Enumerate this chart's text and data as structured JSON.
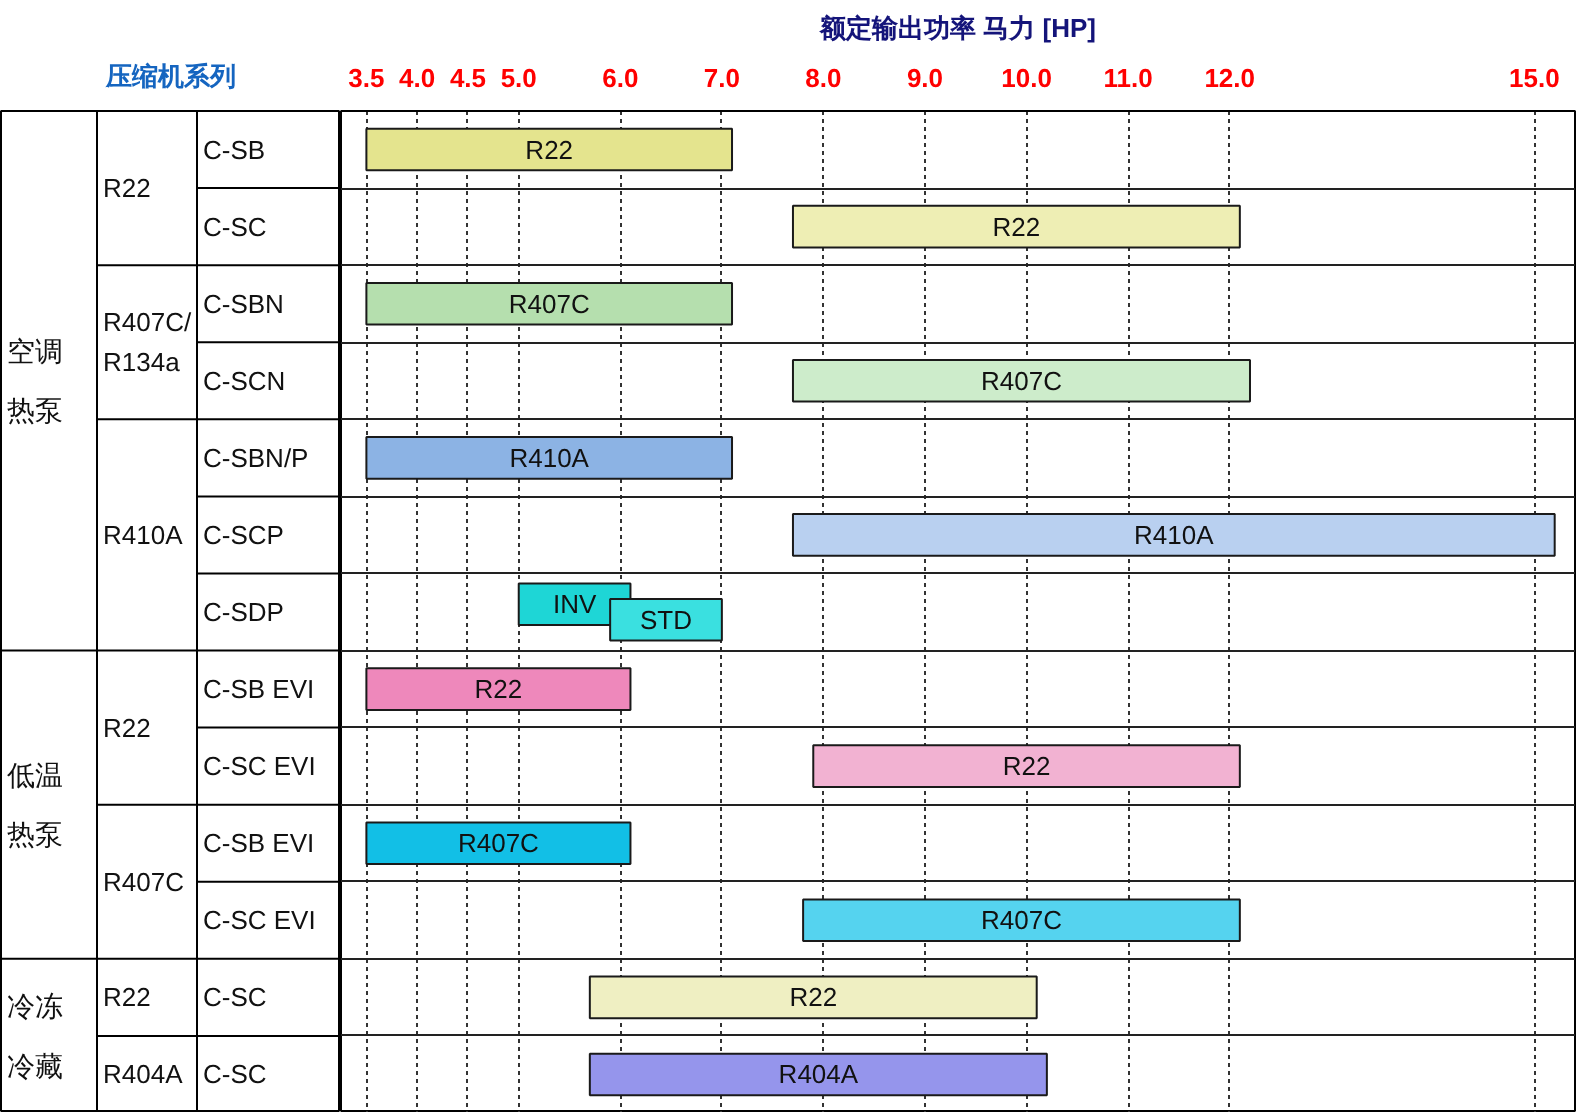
{
  "chart_data": {
    "type": "bar",
    "orientation": "horizontal",
    "xlabel": "额定输出功率 马力 [HP]",
    "ylabel": "压缩机系列",
    "categories": [
      "C-SB",
      "C-SC",
      "C-SBN",
      "C-SCN",
      "C-SBN/P",
      "C-SCP",
      "C-SDP",
      "C-SB EVI",
      "C-SC EVI",
      "C-SB EVI",
      "C-SC EVI",
      "C-SC",
      "C-SC"
    ],
    "annotations": [
      "空调热泵",
      "低温热泵",
      "冷冻冷藏",
      "R22",
      "R407C/\nR134a",
      "R410A",
      "R22",
      "R407C",
      "R22",
      "R404A"
    ],
    "xlim": [
      3.25,
      15.4
    ],
    "xticks": [
      3.5,
      {
        "value": 4,
        "label": "4.0"
      },
      4.5,
      {
        "value": 5,
        "label": "5.0"
      },
      {
        "value": 6,
        "label": "6.0"
      },
      {
        "value": 7,
        "label": "7.0"
      },
      {
        "value": 8,
        "label": "8.0"
      },
      {
        "value": 9,
        "label": "9.0"
      },
      {
        "value": 10,
        "label": "10.0"
      },
      {
        "value": 11,
        "label": "11.0"
      },
      {
        "value": 12,
        "label": "12.0"
      },
      {
        "value": 15,
        "label": "15.0"
      }
    ],
    "grid": true,
    "series": [
      {
        "base": [
          3.5,
          7.7,
          3.5,
          7.7,
          3.5,
          7.7,
          5.0,
          3.5,
          7.9,
          3.5,
          7.8,
          5.7,
          5.7
        ],
        "values": [
          3.6,
          4.4,
          3.6,
          4.5,
          3.6,
          7.5,
          1.1,
          2.6,
          4.2,
          2.6,
          4.3,
          4.4,
          4.5
        ],
        "colors": [
          "#e4e48e",
          "#eeeeb4",
          "#b5dfae",
          "#cdeccb",
          "#8cb3e4",
          "#b9d0f0",
          "#1ed6d6",
          "#ee88bb",
          "#f2b2d2",
          "#12bfe6",
          "#55d3ef",
          "#efefc2",
          "#9595ec"
        ],
        "value_labels": [
          "R22",
          "R22",
          "R407C",
          "R407C",
          "R410A",
          "R410A",
          "INV",
          "R22",
          "R22",
          "R407C",
          "R407C",
          "R22",
          "R404A"
        ]
      },
      {
        "base": [
          null,
          null,
          null,
          null,
          null,
          null,
          5.9,
          null,
          null,
          null,
          null,
          null,
          null
        ],
        "values": [
          null,
          null,
          null,
          null,
          null,
          null,
          1.1,
          null,
          null,
          null,
          null,
          null,
          null
        ],
        "colors": [
          null,
          null,
          null,
          null,
          null,
          null,
          "#3ae0e0",
          null,
          null,
          null,
          null,
          null,
          null
        ],
        "value_labels": [
          null,
          null,
          null,
          null,
          null,
          null,
          "STD",
          null,
          null,
          null,
          null,
          null,
          null
        ]
      }
    ]
  }
}
